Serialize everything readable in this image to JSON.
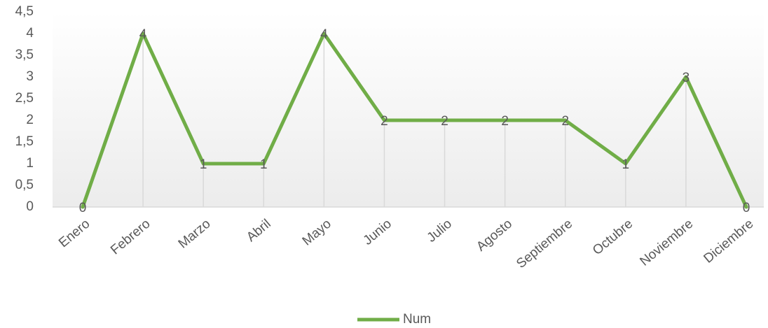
{
  "chart_data": {
    "type": "line",
    "categories": [
      "Enero",
      "Febrero",
      "Marzo",
      "Abril",
      "Mayo",
      "Junio",
      "Julio",
      "Agosto",
      "Septiembre",
      "Octubre",
      "Noviembre",
      "Diciembre"
    ],
    "series": [
      {
        "name": "Num",
        "color": "#70ad47",
        "values": [
          0,
          4,
          1,
          1,
          4,
          2,
          2,
          2,
          2,
          1,
          3,
          0
        ]
      }
    ],
    "ylim": [
      0,
      4.5
    ],
    "yticks": [
      0,
      {
        "value": 0.5,
        "label": "0,5"
      },
      1,
      {
        "value": 1.5,
        "label": "1,5"
      },
      2,
      {
        "value": 2.5,
        "label": "2,5"
      },
      3,
      {
        "value": 3.5,
        "label": "3,5"
      },
      4,
      {
        "value": 4.5,
        "label": "4,5"
      }
    ],
    "legend": "bottom"
  }
}
